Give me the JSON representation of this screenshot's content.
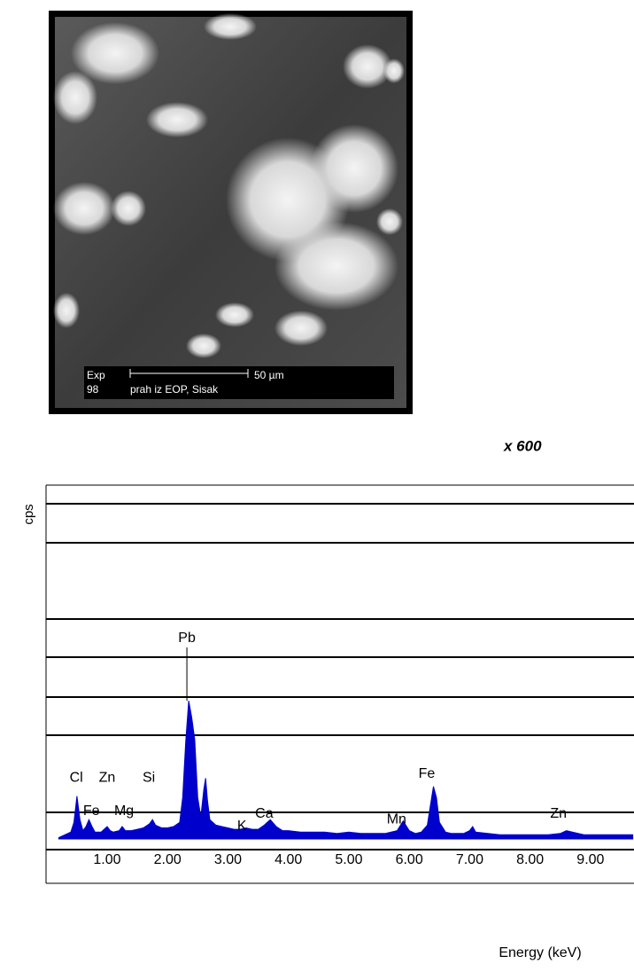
{
  "image": {
    "label_exp": "Exp",
    "label_number": "98",
    "scale": "50 µm",
    "caption": "prah iz EOP, Sisak",
    "magnification": "x 600"
  },
  "chart_data": {
    "type": "area",
    "ylabel": "cps",
    "xlabel": "Energy (keV)",
    "color": "#0000cc",
    "xlim": [
      0,
      9.72
    ],
    "ylim": [
      0,
      256
    ],
    "xticks": [
      {
        "value": 1,
        "label": "1.00"
      },
      {
        "value": 2,
        "label": "2.00"
      },
      {
        "value": 3,
        "label": "3.00"
      },
      {
        "value": 4,
        "label": "4.00"
      },
      {
        "value": 5,
        "label": "5.00"
      },
      {
        "value": 6,
        "label": "6.00"
      },
      {
        "value": 7,
        "label": "7.00"
      },
      {
        "value": 8,
        "label": "8.00"
      },
      {
        "value": 9,
        "label": "9.00"
      }
    ],
    "x": [
      0.2,
      0.3,
      0.4,
      0.45,
      0.5,
      0.55,
      0.6,
      0.65,
      0.7,
      0.75,
      0.8,
      0.9,
      1.0,
      1.05,
      1.1,
      1.2,
      1.25,
      1.3,
      1.4,
      1.5,
      1.6,
      1.7,
      1.75,
      1.8,
      1.9,
      2.0,
      2.1,
      2.2,
      2.25,
      2.3,
      2.35,
      2.4,
      2.45,
      2.5,
      2.55,
      2.6,
      2.63,
      2.66,
      2.7,
      2.8,
      2.9,
      3.0,
      3.1,
      3.2,
      3.3,
      3.4,
      3.5,
      3.6,
      3.7,
      3.8,
      3.9,
      4.0,
      4.2,
      4.4,
      4.6,
      4.8,
      5.0,
      5.2,
      5.4,
      5.6,
      5.8,
      5.9,
      6.0,
      6.1,
      6.2,
      6.3,
      6.35,
      6.4,
      6.45,
      6.5,
      6.6,
      6.7,
      6.8,
      6.9,
      7.0,
      7.05,
      7.1,
      7.3,
      7.5,
      7.7,
      7.9,
      8.1,
      8.3,
      8.5,
      8.6,
      8.7,
      8.9,
      9.1,
      9.3,
      9.5,
      9.7
    ],
    "values": [
      1,
      3,
      5,
      12,
      31,
      14,
      6,
      9,
      14,
      9,
      5,
      5,
      9,
      6,
      5,
      6,
      9,
      6,
      6,
      7,
      8,
      11,
      14,
      10,
      8,
      8,
      9,
      12,
      30,
      70,
      100,
      88,
      72,
      30,
      16,
      36,
      44,
      28,
      14,
      10,
      9,
      8,
      7,
      7,
      8,
      7,
      7,
      10,
      14,
      9,
      6,
      6,
      5,
      5,
      5,
      4,
      5,
      4,
      4,
      4,
      6,
      13,
      6,
      4,
      5,
      10,
      24,
      38,
      30,
      12,
      5,
      4,
      4,
      4,
      6,
      9,
      5,
      4,
      3,
      3,
      3,
      3,
      3,
      4,
      6,
      5,
      3,
      3,
      3,
      3,
      3
    ],
    "annotations": [
      {
        "text": "Pb",
        "x": 2.32,
        "y": 145
      },
      {
        "text": "Cl",
        "x": 0.49,
        "y": 44
      },
      {
        "text": "Zn",
        "x": 1.0,
        "y": 44
      },
      {
        "text": "Si",
        "x": 1.69,
        "y": 44
      },
      {
        "text": "Fe",
        "x": 0.74,
        "y": 20
      },
      {
        "text": "Mg",
        "x": 1.28,
        "y": 20
      },
      {
        "text": "K",
        "x": 3.23,
        "y": 9
      },
      {
        "text": "Ca",
        "x": 3.6,
        "y": 18
      },
      {
        "text": "Mn",
        "x": 5.79,
        "y": 14
      },
      {
        "text": "Fe",
        "x": 6.29,
        "y": 47
      },
      {
        "text": "Zn",
        "x": 8.47,
        "y": 18
      }
    ]
  }
}
